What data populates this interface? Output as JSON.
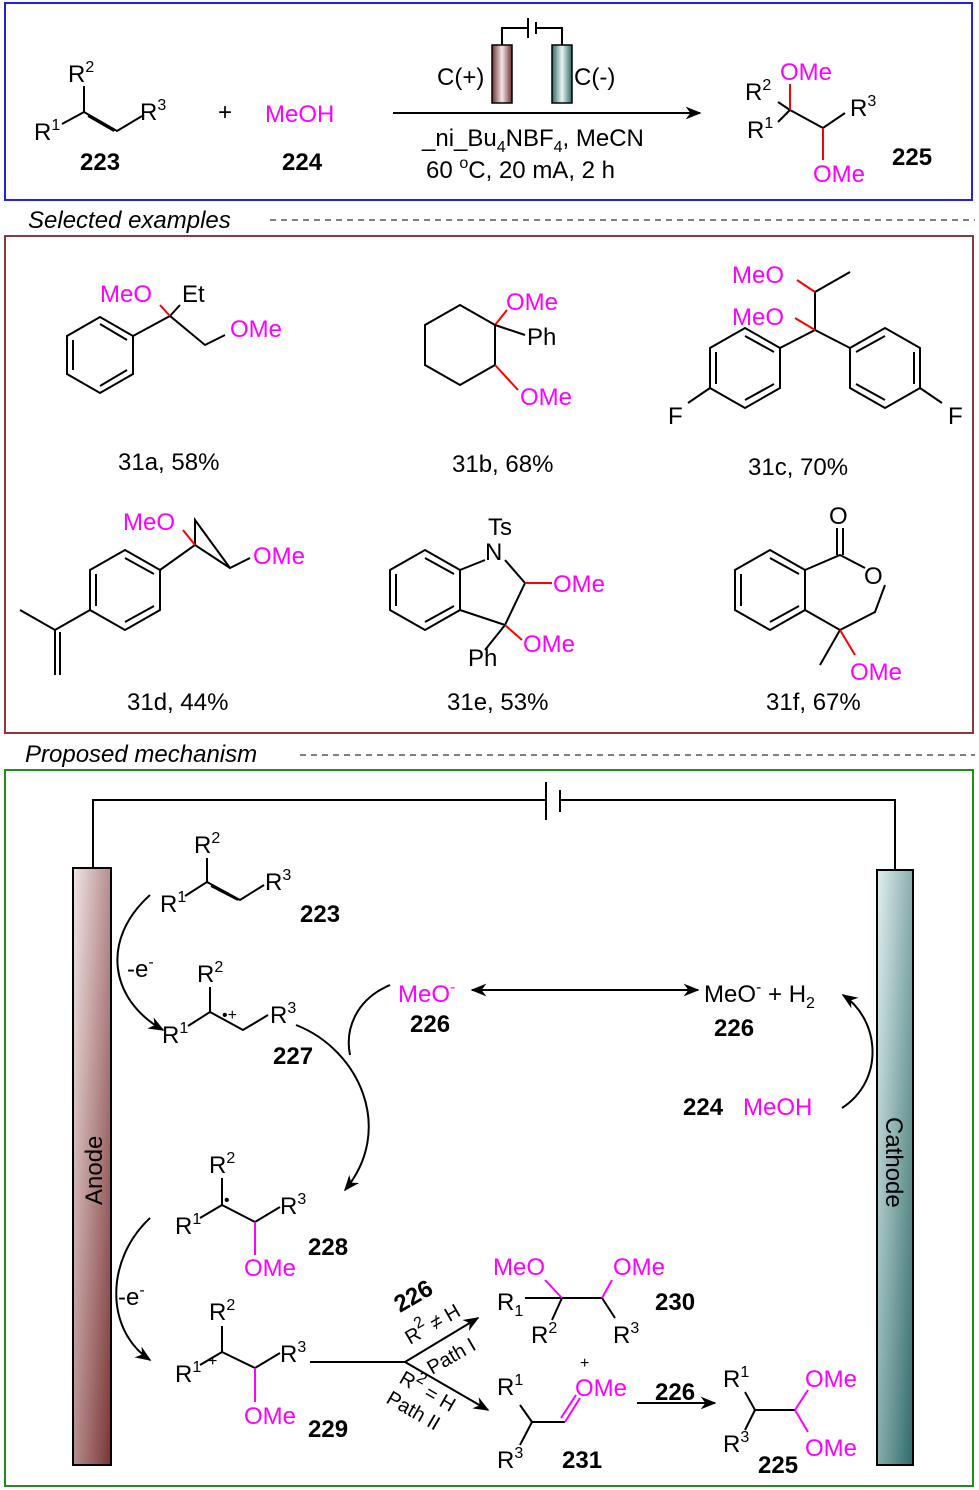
{
  "colors": {
    "methoxy": "#ff00ff",
    "new_bond": "#ff0000",
    "reaction_box": "#2222dd",
    "examples_box": "#8b3a3a",
    "mechanism_box": "#228b22",
    "anode": "#8b4a4a",
    "cathode": "#4a8a8a"
  },
  "reaction": {
    "reactant1": {
      "r1": "R^{1}",
      "r2": "R^{2}",
      "r3": "R^{3}",
      "id": "223"
    },
    "plus": "+",
    "reactant2": {
      "name": "MeOH",
      "id": "224"
    },
    "anode_label": "C(+)",
    "cathode_label": "C(-)",
    "conditions1": "_ni_Bu_{4}NBF_{4}, MeCN",
    "conditions2": "60 ^{o}C, 20 mA, 2 h",
    "product": {
      "r1": "R^{1}",
      "r2": "R^{2}",
      "r3": "R^{3}",
      "ome1": "OMe",
      "ome2": "OMe",
      "id": "225"
    }
  },
  "examples_heading": "Selected examples",
  "examples": [
    {
      "label": "31a, 58%",
      "meo": "MeO",
      "et": "Et",
      "ome": "OMe"
    },
    {
      "label": "31b, 68%",
      "ome1": "OMe",
      "ph": "Ph",
      "ome2": "OMe"
    },
    {
      "label": "31c,  70%",
      "meo1": "MeO",
      "meo2": "MeO",
      "f1": "F",
      "f2": "F"
    },
    {
      "label": "31d, 44%",
      "meo": "MeO",
      "ome": "OMe"
    },
    {
      "label": "31e, 53%",
      "ts": "Ts",
      "n": "N",
      "ome1": "OMe",
      "ome2": "OMe",
      "ph": "Ph"
    },
    {
      "label": "31f, 67%",
      "o1": "O",
      "o2": "O",
      "ome": "OMe"
    }
  ],
  "mechanism_heading": "Proposed mechanism",
  "mechanism": {
    "anode": "Anode",
    "cathode": "Cathode",
    "s223": {
      "r1": "R^{1}",
      "r2": "R^{2}",
      "r3": "R^{3}",
      "id": "223"
    },
    "e1": "-e^{-}",
    "e2": "-e^{-}",
    "s227": {
      "r1": "R^{1}",
      "r2": "R^{2}",
      "r3": "R^{3}",
      "rad": "•+",
      "id": "227"
    },
    "meo_left": "MeO^{-}",
    "meo_left_id": "226",
    "meo_right": "MeO^{-} + H_{2}",
    "meo_right_id": "226",
    "methanol": "MeOH",
    "methanol_id": "224",
    "s228": {
      "r1": "R^{1}",
      "r2": "R^{2}",
      "r3": "R^{3}",
      "ome": "OMe",
      "dot": "•",
      "id": "228"
    },
    "s229": {
      "r1": "R^{1}",
      "r2": "R^{2}",
      "r3": "R^{3}",
      "ome": "OMe",
      "plus": "+",
      "id": "229"
    },
    "path1": {
      "reagent": "226",
      "cond": "R^{2} ≠ H",
      "name": "Path I"
    },
    "path2": {
      "cond": "R^{2} = H",
      "name": "Path II"
    },
    "s230": {
      "meo": "MeO",
      "ome": "OMe",
      "r1": "R_{1}",
      "r2": "R^{2}",
      "r3": "R^{3}",
      "id": "230"
    },
    "s231": {
      "r1": "R^{1}",
      "r3": "R^{3}",
      "ome": "OMe",
      "plus": "+",
      "id": "231"
    },
    "step_reagent": "226",
    "s225": {
      "r1": "R^{1}",
      "r3": "R^{3}",
      "ome1": "OMe",
      "ome2": "OMe",
      "id": "225"
    }
  }
}
